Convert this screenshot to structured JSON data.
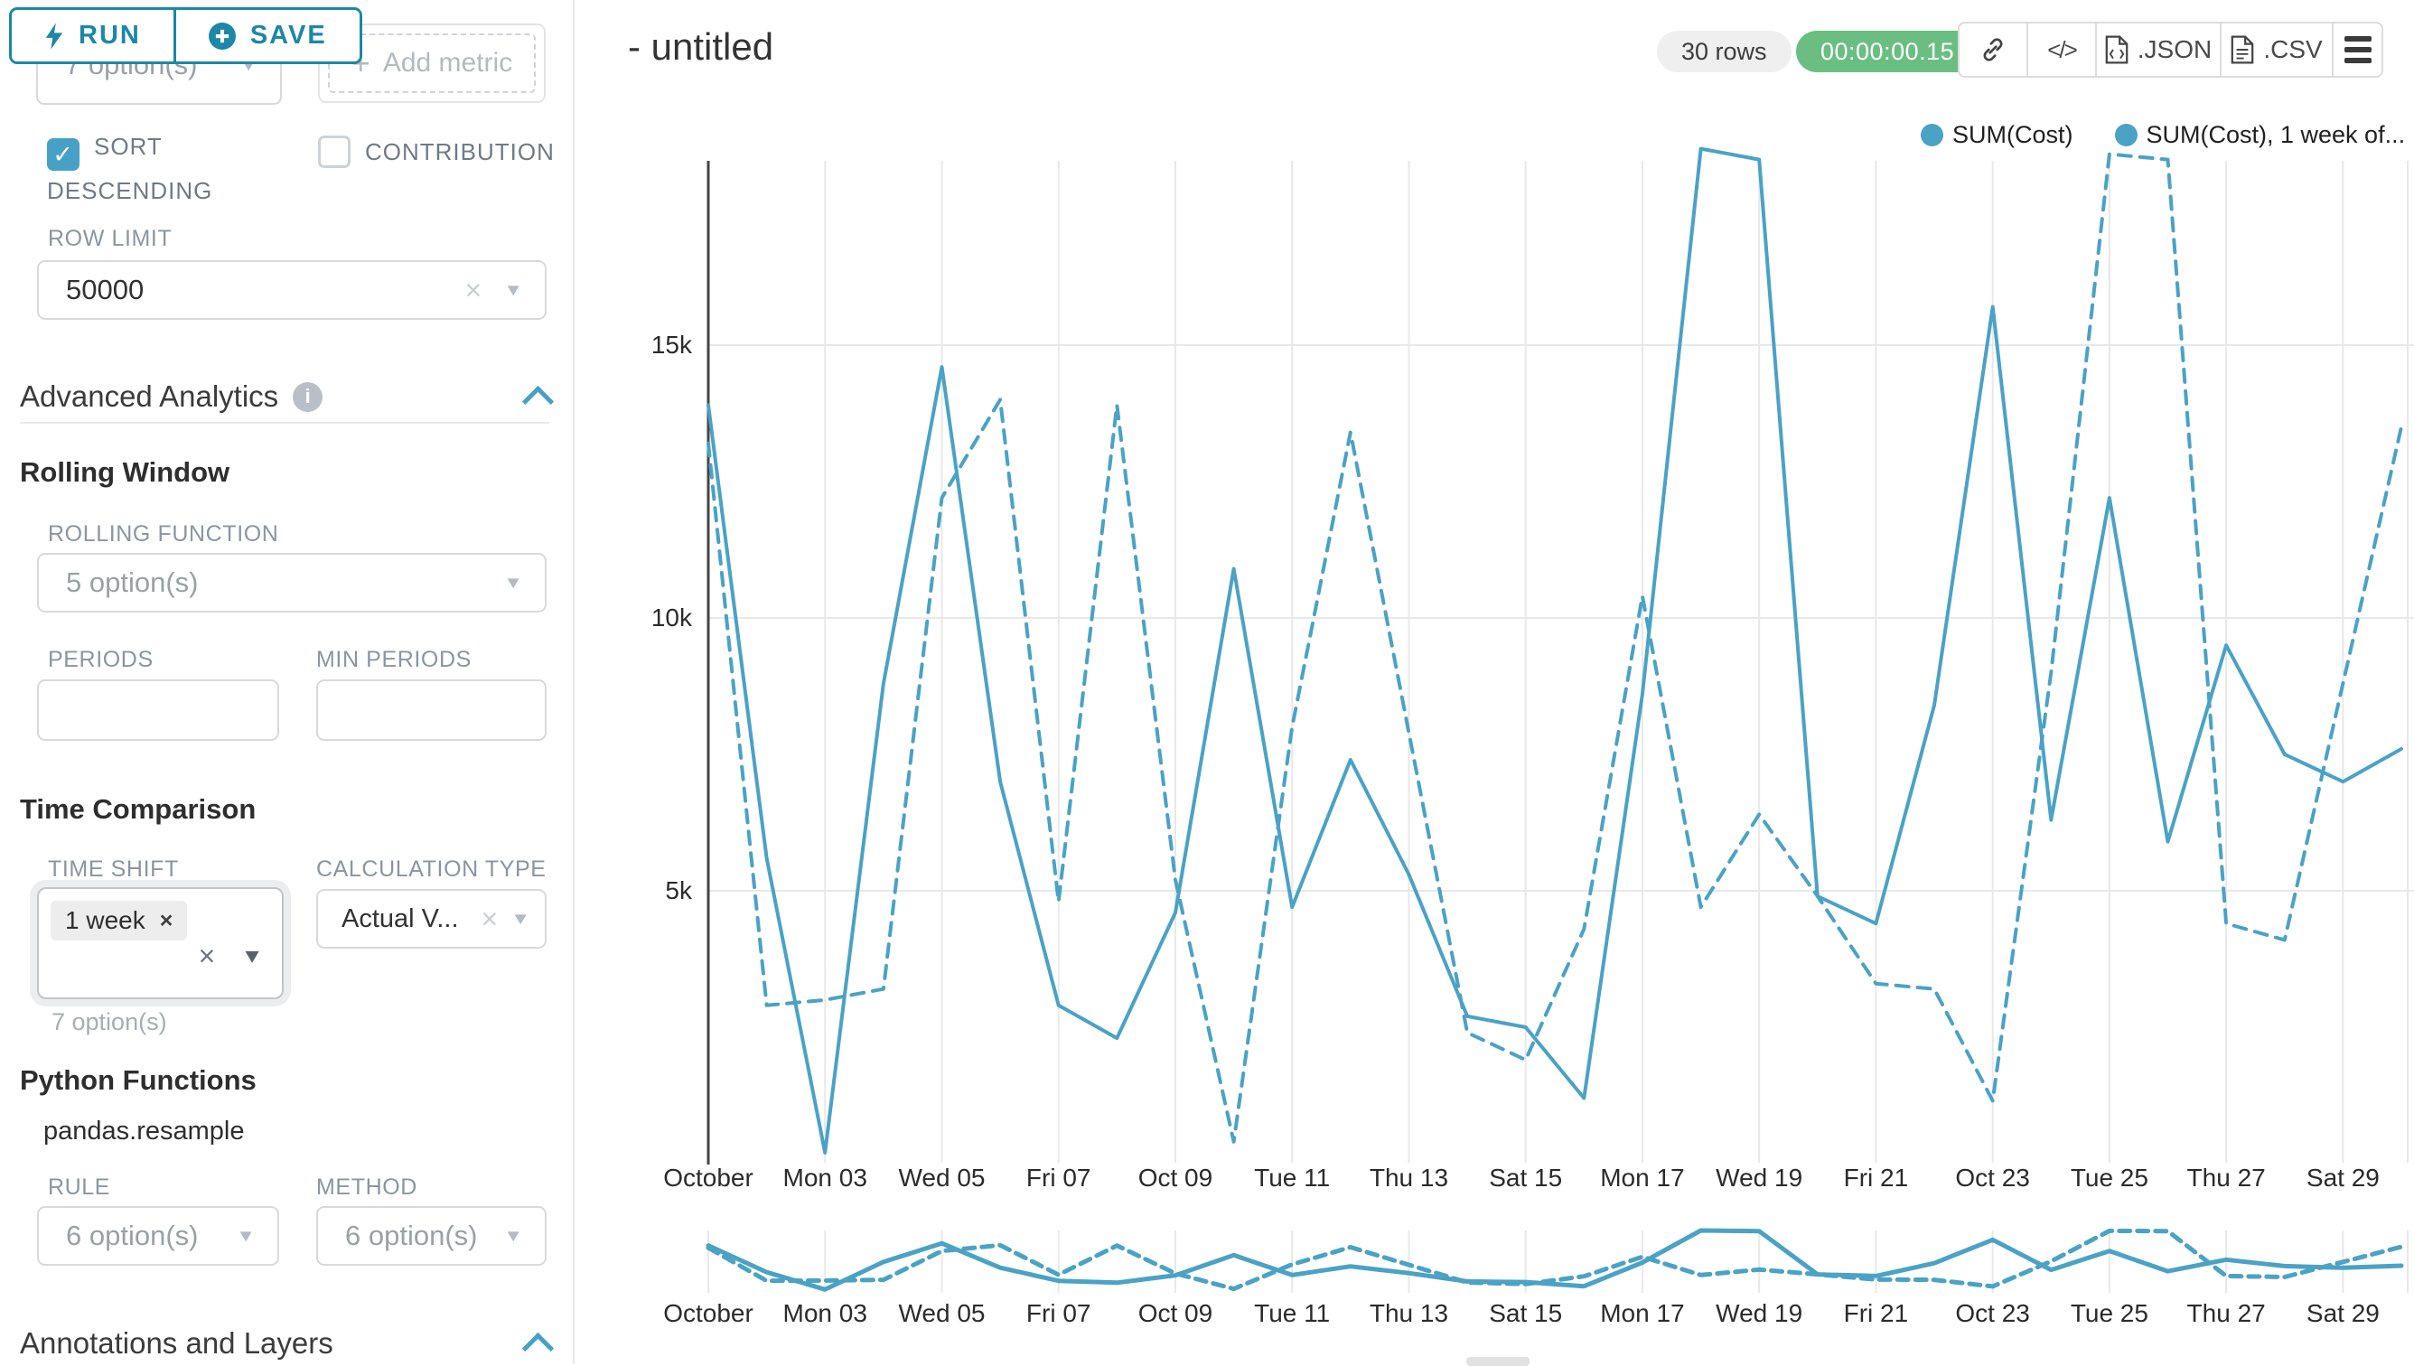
{
  "toolbar": {
    "run": "RUN",
    "save": "SAVE"
  },
  "panel": {
    "groupby_placeholder": "7 option(s)",
    "add_metric": {
      "icon": "+",
      "label": "Add metric"
    },
    "sort_descending": "SORT DESCENDING",
    "contribution": "CONTRIBUTION",
    "row_limit": {
      "label": "ROW LIMIT",
      "value": "50000"
    },
    "advanced_analytics": {
      "title": "Advanced Analytics",
      "info_glyph": "i"
    },
    "rolling_window": {
      "title": "Rolling Window",
      "rolling_function_label": "ROLLING FUNCTION",
      "rolling_function_placeholder": "5 option(s)",
      "periods_label": "PERIODS",
      "min_periods_label": "MIN PERIODS"
    },
    "time_comparison": {
      "title": "Time Comparison",
      "time_shift_label": "TIME SHIFT",
      "time_shift_tag": "1 week",
      "time_shift_helper": "7 option(s)",
      "calculation_type_label": "CALCULATION TYPE",
      "calculation_type_value": "Actual V..."
    },
    "python_functions": {
      "title": "Python Functions",
      "subtitle": "pandas.resample",
      "rule_label": "RULE",
      "rule_placeholder": "6 option(s)",
      "method_label": "METHOD",
      "method_placeholder": "6 option(s)"
    },
    "annotations": {
      "title": "Annotations and Layers"
    }
  },
  "header": {
    "title": "- untitled",
    "rows_badge": "30 rows",
    "timer": "00:00:00.15",
    "code_glyph": "</>",
    "json_label": ".JSON",
    "csv_label": ".CSV"
  },
  "glyphs": {
    "caret": "▼",
    "clear": "×",
    "check": "✓"
  },
  "colors": {
    "accent": "#1c87a6",
    "line": "#4aa2c5",
    "green_badge": "#6abe81",
    "checkbox": "#47a1c6"
  },
  "chart_data": {
    "type": "line",
    "color": "#4aa2c5",
    "grid": true,
    "legend_position": "top-right",
    "ylim": [
      0,
      18800
    ],
    "categories": [
      "Oct 01",
      "Oct 02",
      "Oct 03",
      "Oct 04",
      "Oct 05",
      "Oct 06",
      "Oct 07",
      "Oct 08",
      "Oct 09",
      "Oct 10",
      "Oct 11",
      "Oct 12",
      "Oct 13",
      "Oct 14",
      "Oct 15",
      "Oct 16",
      "Oct 17",
      "Oct 18",
      "Oct 19",
      "Oct 20",
      "Oct 21",
      "Oct 22",
      "Oct 23",
      "Oct 24",
      "Oct 25",
      "Oct 26",
      "Oct 27",
      "Oct 28",
      "Oct 29",
      "Oct 30"
    ],
    "x_tick_indices": [
      0,
      2,
      4,
      6,
      8,
      10,
      12,
      14,
      16,
      18,
      20,
      22,
      24,
      26,
      28
    ],
    "x_tick_labels": [
      "October",
      "Mon 03",
      "Wed 05",
      "Fri 07",
      "Oct 09",
      "Tue 11",
      "Thu 13",
      "Sat 15",
      "Mon 17",
      "Wed 19",
      "Fri 21",
      "Oct 23",
      "Tue 25",
      "Thu 27",
      "Sat 29"
    ],
    "y_ticks": [
      {
        "value": 5000,
        "label": "5k"
      },
      {
        "value": 10000,
        "label": "10k"
      },
      {
        "value": 15000,
        "label": "15k"
      }
    ],
    "series": [
      {
        "name": "SUM(Cost)",
        "line_style": "solid",
        "values": [
          13900,
          5600,
          200,
          8800,
          14600,
          7000,
          2900,
          2300,
          4600,
          10900,
          4700,
          7400,
          5300,
          2700,
          2500,
          1200,
          8600,
          18600,
          18400,
          4900,
          4400,
          8400,
          15700,
          6300,
          12200,
          5900,
          9500,
          7500,
          7000,
          7600
        ]
      },
      {
        "name": "SUM(Cost), 1 week of...",
        "line_style": "dashed",
        "values": [
          13200,
          2900,
          3000,
          3200,
          12200,
          14000,
          4800,
          13900,
          5200,
          400,
          8000,
          13400,
          7900,
          2400,
          1900,
          4300,
          10400,
          4700,
          6400,
          4900,
          3300,
          3200,
          1150,
          9000,
          18500,
          18400,
          4400,
          4100,
          8800,
          13500
        ]
      }
    ]
  }
}
